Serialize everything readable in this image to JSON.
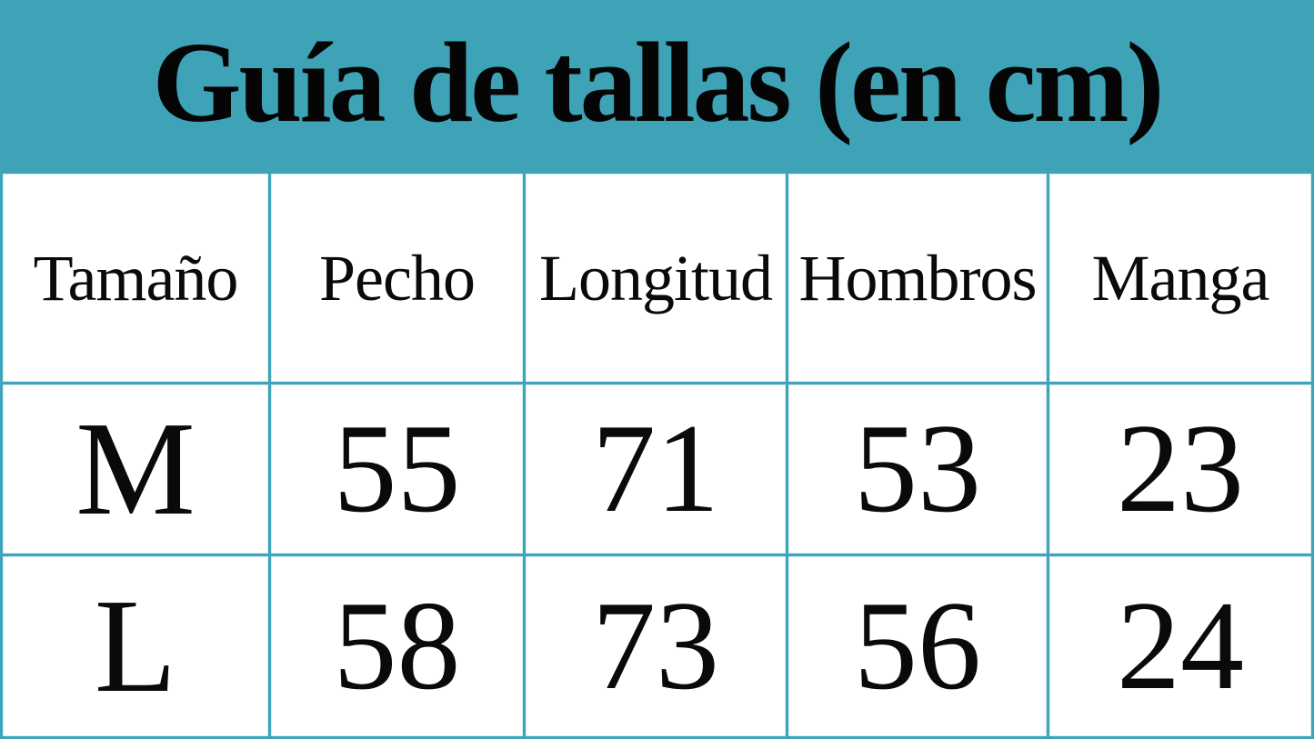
{
  "banner": {
    "title": "Guía de tallas (en cm)"
  },
  "table": {
    "headers": [
      "Tamaño",
      "Pecho",
      "Longitud",
      "Hombros",
      "Manga"
    ],
    "rows": [
      [
        "M",
        "55",
        "71",
        "53",
        "23"
      ],
      [
        "L",
        "58",
        "73",
        "56",
        "24"
      ]
    ]
  },
  "colors": {
    "banner_teal": "#3fa3b7",
    "grid_line_teal": "#3fa4ba",
    "cell_background": "#ffffff",
    "text_color": "#0a0a0a"
  },
  "chart_data": {
    "type": "table",
    "title": "Guía de tallas (en cm)",
    "unit": "cm",
    "columns": [
      "Tamaño",
      "Pecho",
      "Longitud",
      "Hombros",
      "Manga"
    ],
    "rows": [
      {
        "Tamaño": "M",
        "Pecho": 55,
        "Longitud": 71,
        "Hombros": 53,
        "Manga": 23
      },
      {
        "Tamaño": "L",
        "Pecho": 58,
        "Longitud": 73,
        "Hombros": 56,
        "Manga": 24
      }
    ]
  }
}
